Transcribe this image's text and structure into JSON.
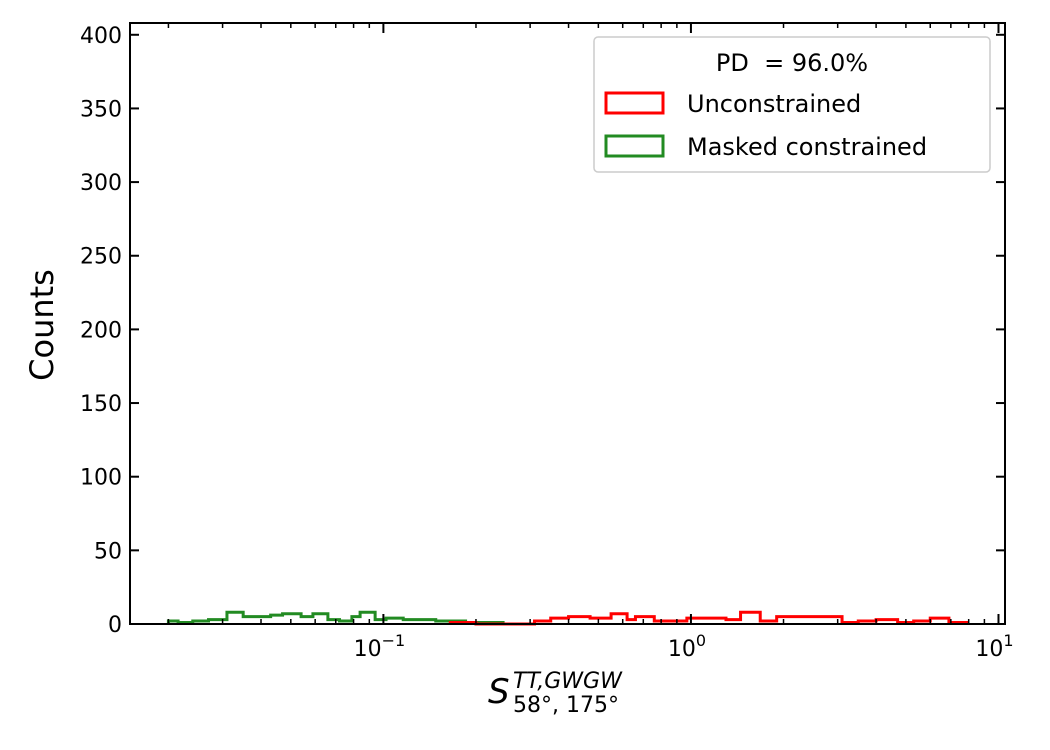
{
  "chart_data": {
    "type": "histogram",
    "xscale": "log",
    "xlim": [
      0.015,
      10.5
    ],
    "ylim": [
      0,
      408
    ],
    "ylabel": "Counts",
    "xlabel": {
      "base": "S",
      "sup": "TT,GWGW",
      "sub": "58°, 175°"
    },
    "x_ticks": [
      {
        "value": 0.1,
        "base": "10",
        "exp": "−1"
      },
      {
        "value": 1,
        "base": "10",
        "exp": "0"
      },
      {
        "value": 10,
        "base": "10",
        "exp": "1"
      }
    ],
    "y_ticks": [
      "0",
      "50",
      "100",
      "150",
      "200",
      "250",
      "300",
      "350",
      "400"
    ],
    "legend": {
      "title": "PD  = 96.0%",
      "position": "top-right"
    },
    "series": [
      {
        "name": "Unconstrained",
        "color": "#ff0000",
        "bins": [
          [
            0.165,
            0.2,
            1
          ],
          [
            0.2,
            0.24,
            0
          ],
          [
            0.24,
            0.31,
            0
          ],
          [
            0.31,
            0.35,
            2
          ],
          [
            0.35,
            0.4,
            4
          ],
          [
            0.4,
            0.47,
            5
          ],
          [
            0.47,
            0.55,
            4
          ],
          [
            0.55,
            0.62,
            7
          ],
          [
            0.62,
            0.66,
            3
          ],
          [
            0.66,
            0.76,
            5
          ],
          [
            0.76,
            0.97,
            2
          ],
          [
            0.97,
            1.3,
            4
          ],
          [
            1.3,
            1.45,
            3
          ],
          [
            1.45,
            1.68,
            8
          ],
          [
            1.68,
            1.9,
            2
          ],
          [
            1.9,
            3.1,
            5
          ],
          [
            3.1,
            3.5,
            1
          ],
          [
            3.5,
            4.0,
            2
          ],
          [
            4.0,
            4.7,
            3
          ],
          [
            4.7,
            5.3,
            1
          ],
          [
            5.3,
            6.0,
            2
          ],
          [
            6.0,
            6.9,
            4
          ],
          [
            6.9,
            7.9,
            1
          ]
        ]
      },
      {
        "name": "Masked constrained",
        "color": "#228b22",
        "bins": [
          [
            0.02,
            0.0215,
            2
          ],
          [
            0.0215,
            0.024,
            1
          ],
          [
            0.024,
            0.027,
            2
          ],
          [
            0.027,
            0.031,
            3
          ],
          [
            0.031,
            0.035,
            8
          ],
          [
            0.035,
            0.043,
            5
          ],
          [
            0.043,
            0.047,
            6
          ],
          [
            0.047,
            0.054,
            7
          ],
          [
            0.054,
            0.059,
            5
          ],
          [
            0.059,
            0.066,
            7
          ],
          [
            0.066,
            0.072,
            3
          ],
          [
            0.072,
            0.079,
            2
          ],
          [
            0.079,
            0.084,
            5
          ],
          [
            0.084,
            0.094,
            8
          ],
          [
            0.094,
            0.102,
            3
          ],
          [
            0.102,
            0.116,
            4
          ],
          [
            0.116,
            0.148,
            3
          ],
          [
            0.148,
            0.185,
            2
          ],
          [
            0.185,
            0.205,
            1
          ],
          [
            0.205,
            0.245,
            1
          ]
        ]
      }
    ]
  }
}
